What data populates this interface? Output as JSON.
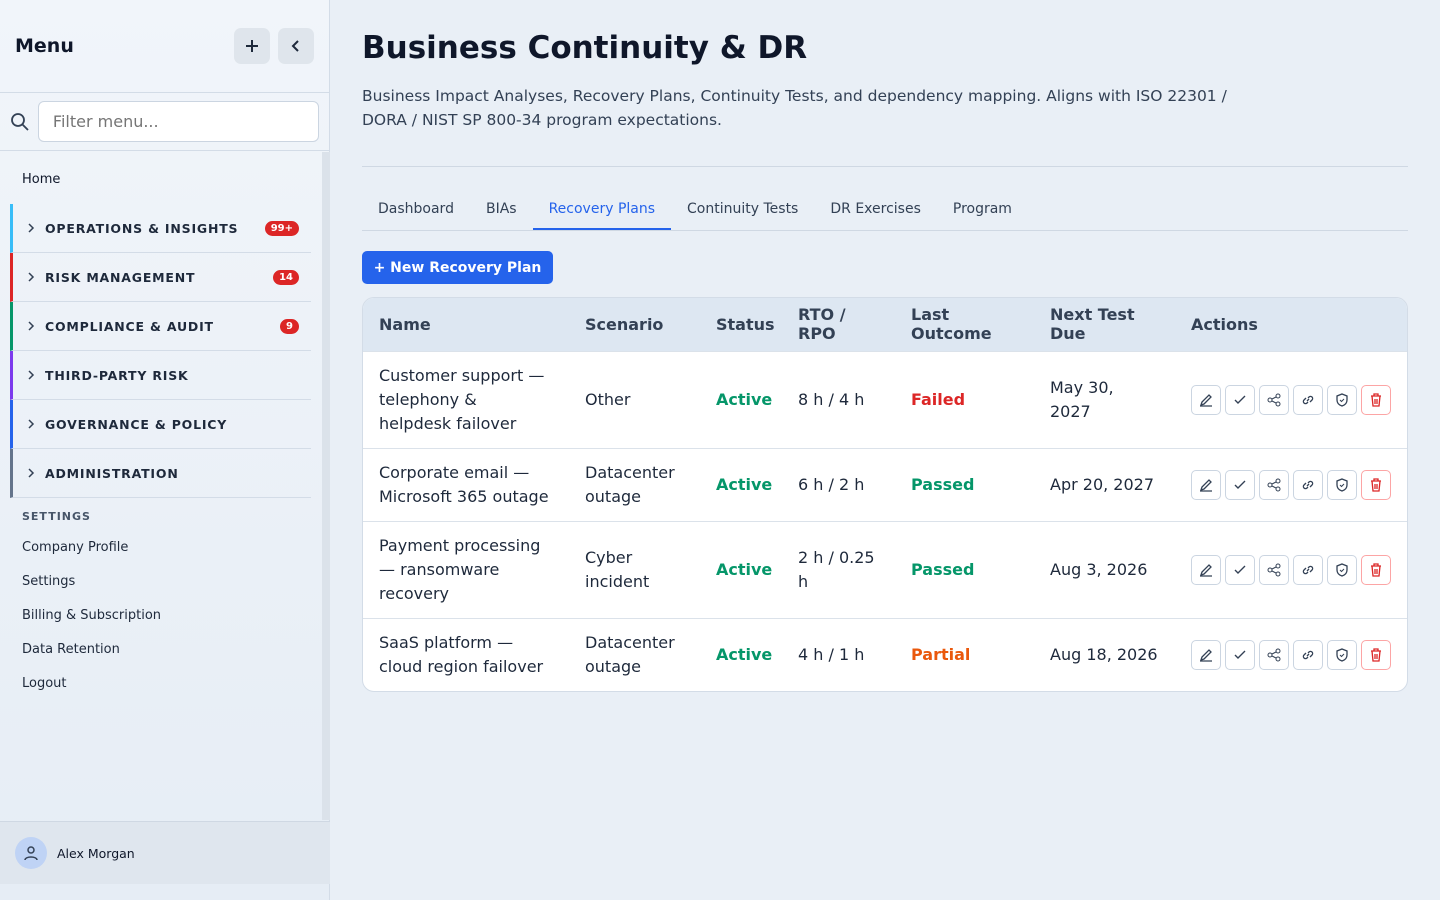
{
  "sidebar": {
    "title": "Menu",
    "filter_placeholder": "Filter menu...",
    "home": "Home",
    "groups": [
      {
        "label": "OPERATIONS & INSIGHTS",
        "badge": "99+",
        "color": "#38bdf8"
      },
      {
        "label": "RISK MANAGEMENT",
        "badge": "14",
        "color": "#dc2626"
      },
      {
        "label": "COMPLIANCE & AUDIT",
        "badge": "9",
        "color": "#059669"
      },
      {
        "label": "THIRD-PARTY RISK",
        "color": "#7c3aed"
      },
      {
        "label": "GOVERNANCE & POLICY",
        "color": "#2563eb"
      },
      {
        "label": "ADMINISTRATION",
        "color": "#64748b"
      }
    ],
    "settings_heading": "SETTINGS",
    "settings_links": [
      "Company Profile",
      "Settings",
      "Billing & Subscription",
      "Data Retention",
      "Logout"
    ],
    "user": "Alex Morgan"
  },
  "header": {
    "title": "Business Continuity & DR",
    "description": "Business Impact Analyses, Recovery Plans, Continuity Tests, and dependency mapping. Aligns with ISO 22301 / DORA / NIST SP 800-34 program expectations."
  },
  "tabs": {
    "items": [
      "Dashboard",
      "BIAs",
      "Recovery Plans",
      "Continuity Tests",
      "DR Exercises",
      "Program"
    ],
    "active": 2
  },
  "new_button": "+ New Recovery Plan",
  "table": {
    "columns": [
      "Name",
      "Scenario",
      "Status",
      "RTO / RPO",
      "Last Outcome",
      "Next Test Due",
      "Actions"
    ],
    "rows": [
      {
        "name": "Customer support — telephony & helpdesk failover",
        "scenario": "Other",
        "status": "Active",
        "rto_rpo": "8 h / 4 h",
        "last_outcome": "Failed",
        "outcome_color": "#dc2626",
        "next_test_due": "May 30, 2027"
      },
      {
        "name": "Corporate email — Microsoft 365 outage",
        "scenario": "Datacenter outage",
        "status": "Active",
        "rto_rpo": "6 h / 2 h",
        "last_outcome": "Passed",
        "outcome_color": "#059669",
        "next_test_due": "Apr 20, 2027"
      },
      {
        "name": "Payment processing — ransomware recovery",
        "scenario": "Cyber incident",
        "status": "Active",
        "rto_rpo": "2 h / 0.25 h",
        "last_outcome": "Passed",
        "outcome_color": "#059669",
        "next_test_due": "Aug 3, 2026"
      },
      {
        "name": "SaaS platform — cloud region failover",
        "scenario": "Datacenter outage",
        "status": "Active",
        "rto_rpo": "4 h / 1 h",
        "last_outcome": "Partial",
        "outcome_color": "#ea580c",
        "next_test_due": "Aug 18, 2026"
      }
    ]
  }
}
